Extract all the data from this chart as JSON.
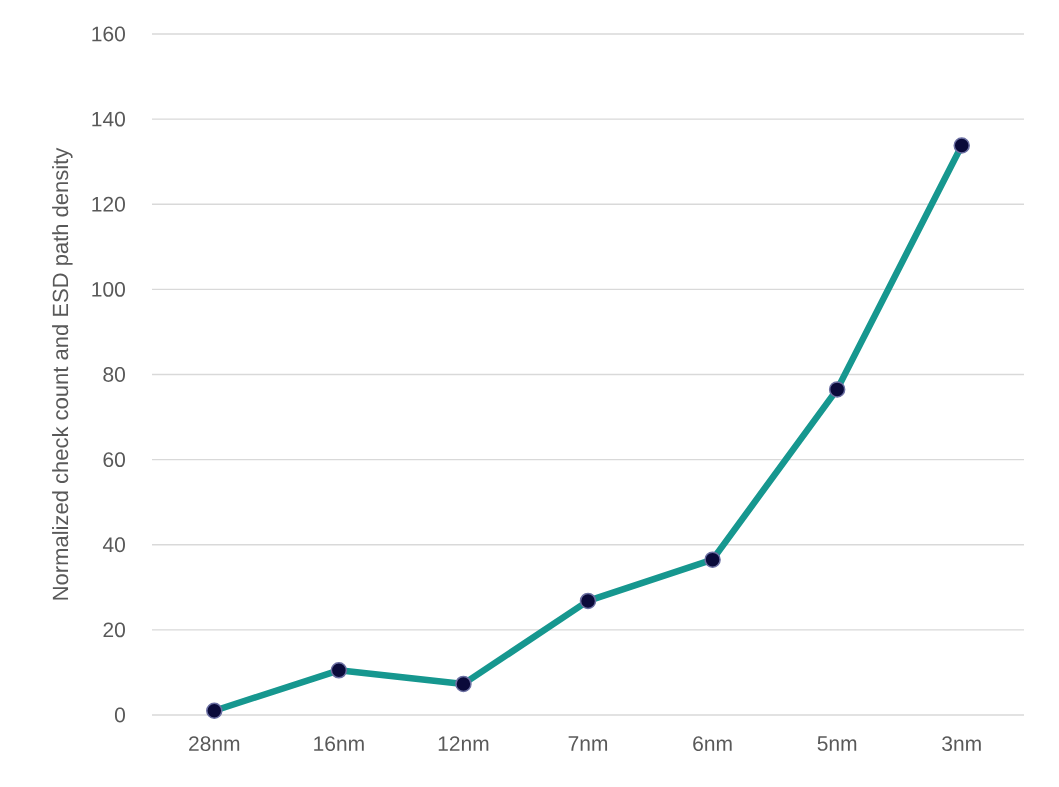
{
  "chart_data": {
    "type": "line",
    "ylabel": "Normalized check count and ESD path density",
    "categories": [
      "28nm",
      "16nm",
      "12nm",
      "7nm",
      "6nm",
      "5nm",
      "3nm"
    ],
    "series": [
      {
        "color": "#16978f",
        "values": [
          1,
          10.5,
          7.3,
          26.8,
          36.5,
          76.5,
          133.8
        ]
      }
    ],
    "ylim": [
      0,
      160
    ],
    "yticks": [
      0,
      20,
      40,
      60,
      80,
      100,
      120,
      140,
      160
    ],
    "grid": "y",
    "marker": "circle",
    "line_style": "solid"
  }
}
